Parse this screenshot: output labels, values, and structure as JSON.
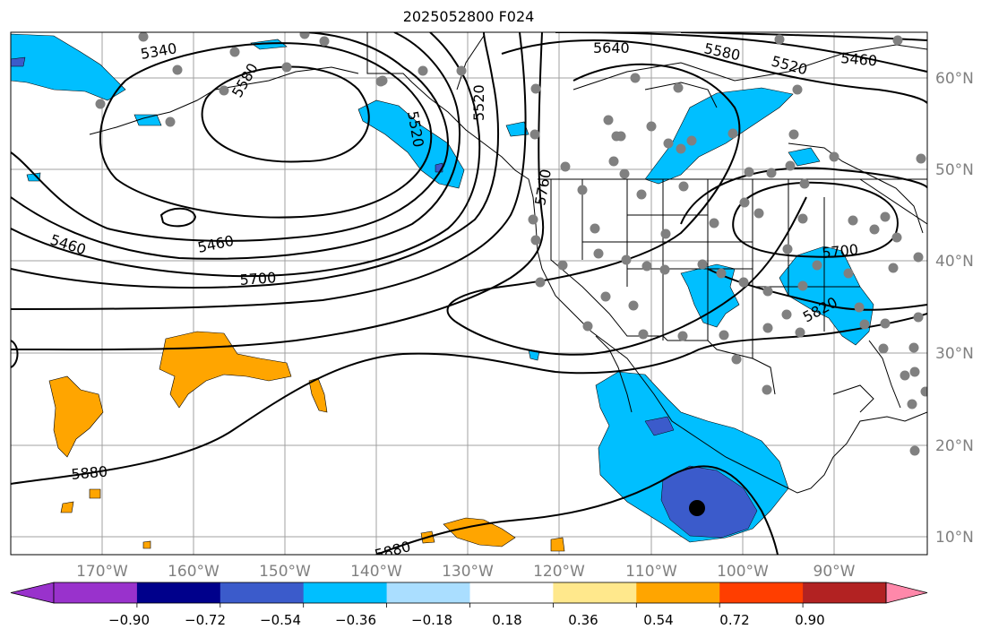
{
  "title": "2025052800 F024",
  "colorbar": {
    "colors": [
      "#9932cc",
      "#00008b",
      "#3b5bcb",
      "#00bfff",
      "#aadeff",
      "#ffffff",
      "#ffe88c",
      "#ffa500",
      "#ff3e00",
      "#b22222",
      "#ff88aa"
    ],
    "tick_labels": [
      "−0.90",
      "−0.72",
      "−0.54",
      "−0.36",
      "−0.18",
      "0.18",
      "0.36",
      "0.54",
      "0.72",
      "0.90"
    ]
  },
  "longitude_labels": [
    "170°W",
    "160°W",
    "150°W",
    "140°W",
    "130°W",
    "120°W",
    "110°W",
    "100°W",
    "90°W"
  ],
  "latitude_labels": [
    "60°N",
    "50°N",
    "40°N",
    "30°N",
    "20°N",
    "10°N"
  ],
  "contour_labels": [
    "5340",
    "5580",
    "5520",
    "5460",
    "5640",
    "5580",
    "5520",
    "5460",
    "5760",
    "5520",
    "5460",
    "5700",
    "5700",
    "5820",
    "5880",
    "5880"
  ],
  "colors": {
    "positive_fill": "#ffa500",
    "negative_fill": "#00bfff",
    "strong_negative_fill": "#3b5bcb",
    "station_dot": "#808080",
    "marker": "#000000"
  }
}
